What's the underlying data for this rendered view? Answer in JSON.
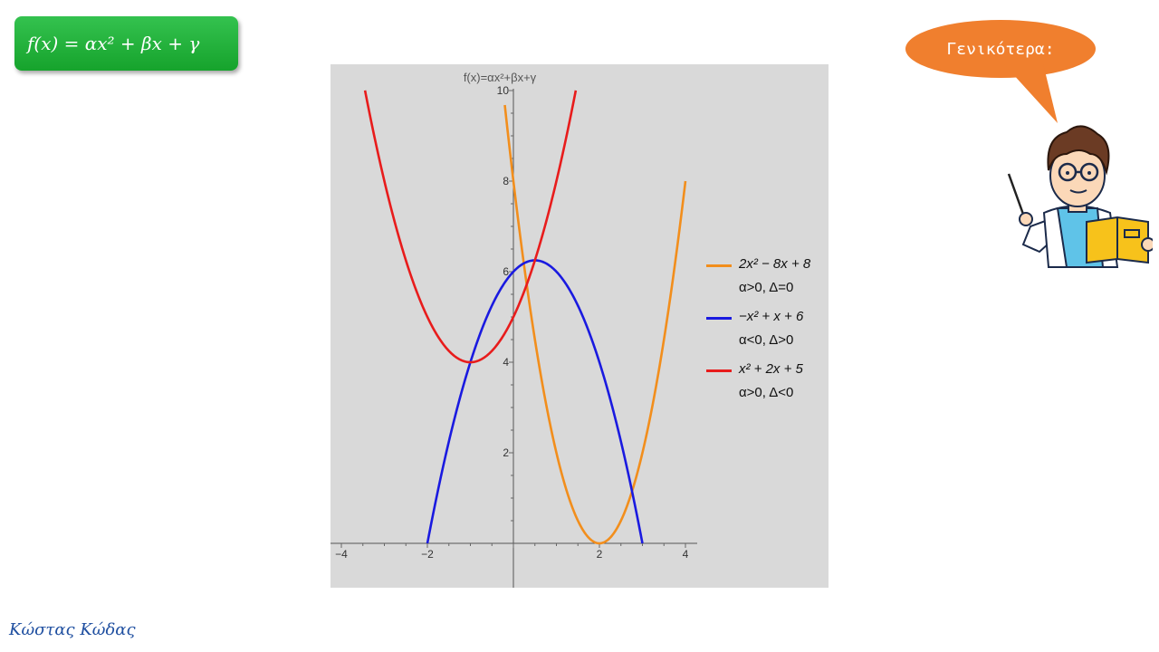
{
  "formula_label": "f(x) = αx² + βx + γ",
  "speech_text": "Γενικότερα:",
  "author": "Κώστας Κώδας",
  "chart_data": {
    "type": "line",
    "title": "f(x)=αx²+βx+γ",
    "xlim": [
      -4,
      4
    ],
    "ylim": [
      0,
      10
    ],
    "xticks": [
      -4,
      -2,
      2,
      4
    ],
    "yticks": [
      2,
      4,
      6,
      8,
      10
    ],
    "grid": false,
    "legend_position": "right",
    "series": [
      {
        "name": "2x² − 8x + 8",
        "description": "α>0, Δ=0",
        "color": "#f28e1c",
        "coefficients": [
          2,
          -8,
          8
        ],
        "x": [
          -0.2,
          0,
          0.5,
          1,
          1.5,
          2,
          2.5,
          3,
          3.5,
          4
        ],
        "y": [
          9.68,
          8,
          4.5,
          2,
          0.5,
          0,
          0.5,
          2,
          4.5,
          8
        ]
      },
      {
        "name": "−x² + x + 6",
        "description": "α<0, Δ>0",
        "color": "#1a1ae0",
        "coefficients": [
          -1,
          1,
          6
        ],
        "x": [
          -2,
          -1.5,
          -1,
          -0.5,
          0,
          0.5,
          1,
          1.5,
          2,
          2.5,
          3
        ],
        "y": [
          0,
          2.25,
          4,
          5.25,
          6,
          6.25,
          6,
          5.25,
          4,
          2.25,
          0
        ]
      },
      {
        "name": "x² + 2x + 5",
        "description": "α>0, Δ<0",
        "color": "#e81c1c",
        "coefficients": [
          1,
          2,
          5
        ],
        "x": [
          -3.45,
          -3,
          -2.5,
          -2,
          -1.5,
          -1,
          -0.5,
          0,
          0.5,
          1,
          1.45
        ],
        "y": [
          9.99,
          8,
          6.25,
          5,
          4.25,
          4,
          4.25,
          5,
          6.25,
          8,
          9.99
        ]
      }
    ]
  }
}
